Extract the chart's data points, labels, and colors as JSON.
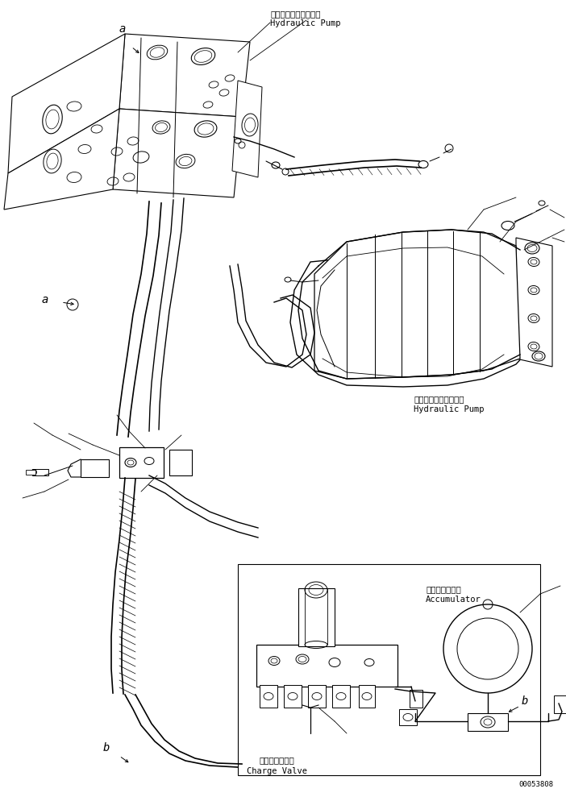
{
  "bg_color": "#ffffff",
  "line_color": "#000000",
  "text_color": "#000000",
  "figsize": [
    7.02,
    9.89
  ],
  "dpi": 100,
  "part_number": "00053808",
  "labels": {
    "hydraulic_pump_top_jp": "ハイドロリックポンプ",
    "hydraulic_pump_top_en": "Hydraulic Pump",
    "hydraulic_pump_right_jp": "ハイドロリックポンプ",
    "hydraulic_pump_right_en": "Hydraulic Pump",
    "accumulator_jp": "アキュムレータ",
    "accumulator_en": "Accumulator",
    "charge_valve_jp": "チャージバルブ",
    "charge_valve_en": "Charge Valve",
    "label_a_top": "a",
    "label_a_mid": "a",
    "label_b_bot": "b",
    "label_b_right": "b"
  }
}
